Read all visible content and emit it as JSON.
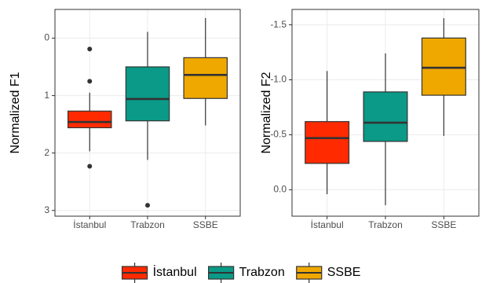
{
  "chart_data": [
    {
      "type": "boxplot",
      "y_label": "Normalized F1",
      "reverse_y": true,
      "grid": true,
      "categories": [
        "İstanbul",
        "Trabzon",
        "SSBE"
      ],
      "colors": [
        "#ff2a00",
        "#0a9a87",
        "#efa800"
      ],
      "ylim": [
        -0.5,
        3.1
      ],
      "yticks": [
        0,
        1,
        2,
        3
      ],
      "boxes": [
        {
          "whislo": 0.95,
          "q1": 1.27,
          "med": 1.46,
          "q3": 1.56,
          "whishi": 1.97,
          "fliers": [
            0.19,
            0.75,
            2.23
          ]
        },
        {
          "whislo": -0.11,
          "q1": 0.5,
          "med": 1.06,
          "q3": 1.44,
          "whishi": 2.12,
          "fliers": [
            2.91
          ]
        },
        {
          "whislo": -0.35,
          "q1": 0.34,
          "med": 0.64,
          "q3": 1.05,
          "whishi": 1.52,
          "fliers": []
        }
      ]
    },
    {
      "type": "boxplot",
      "y_label": "Normalized F2",
      "reverse_y": true,
      "grid": true,
      "categories": [
        "İstanbul",
        "Trabzon",
        "SSBE"
      ],
      "colors": [
        "#ff2a00",
        "#0a9a87",
        "#efa800"
      ],
      "ylim": [
        -1.64,
        0.24
      ],
      "yticks": [
        -1.5,
        {
          "value": -1,
          "label": "-1.0"
        },
        -0.5,
        {
          "value": 0,
          "label": "0.0"
        }
      ],
      "boxes": [
        {
          "whislo": -1.08,
          "q1": -0.62,
          "med": -0.47,
          "q3": -0.24,
          "whishi": 0.04,
          "fliers": []
        },
        {
          "whislo": -1.24,
          "q1": -0.89,
          "med": -0.61,
          "q3": -0.44,
          "whishi": 0.14,
          "fliers": []
        },
        {
          "whislo": -1.56,
          "q1": -1.38,
          "med": -1.11,
          "q3": -0.86,
          "whishi": -0.49,
          "fliers": []
        }
      ]
    }
  ],
  "legend": {
    "position": "bottom"
  }
}
